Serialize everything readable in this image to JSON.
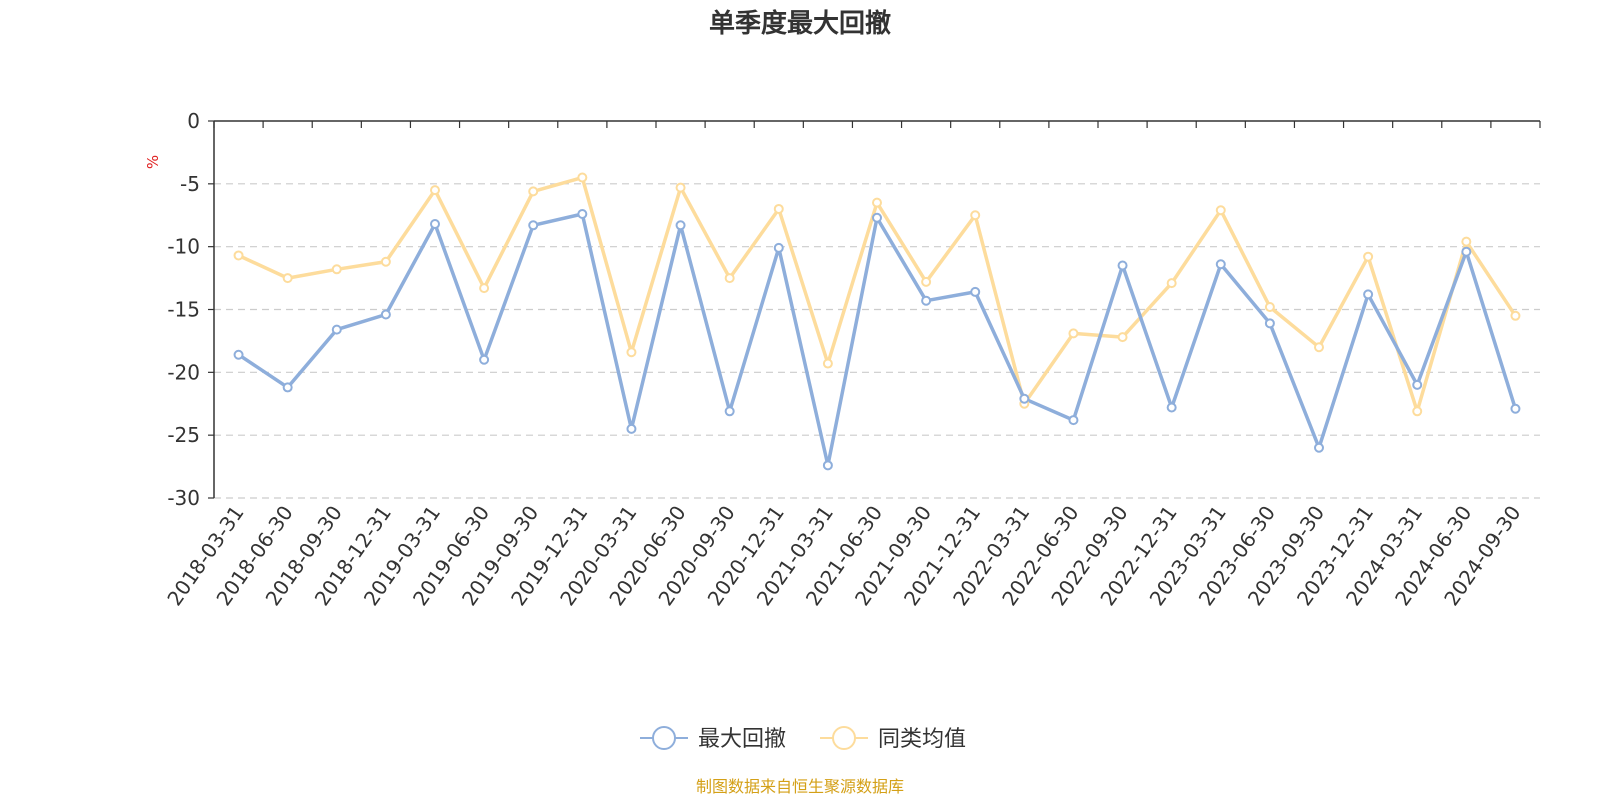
{
  "chart_data": {
    "type": "line",
    "title": "单季度最大回撤",
    "ylabel": "%",
    "ylim": [
      -30,
      0
    ],
    "yticks": [
      0,
      -5,
      -10,
      -15,
      -20,
      -25,
      -30
    ],
    "grid": true,
    "legend_position": "bottom-center",
    "categories": [
      "2018-03-31",
      "2018-06-30",
      "2018-09-30",
      "2018-12-31",
      "2019-03-31",
      "2019-06-30",
      "2019-09-30",
      "2019-12-31",
      "2020-03-31",
      "2020-06-30",
      "2020-09-30",
      "2020-12-31",
      "2021-03-31",
      "2021-06-30",
      "2021-09-30",
      "2021-12-31",
      "2022-03-31",
      "2022-06-30",
      "2022-09-30",
      "2022-12-31",
      "2023-03-31",
      "2023-06-30",
      "2023-09-30",
      "2023-12-31",
      "2024-03-31",
      "2024-06-30",
      "2024-09-30"
    ],
    "series": [
      {
        "name": "最大回撤",
        "color": "#8eaedb",
        "values": [
          -18.6,
          -21.2,
          -16.6,
          -15.4,
          -8.2,
          -19.0,
          -8.3,
          -7.4,
          -24.5,
          -8.3,
          -23.1,
          -10.1,
          -27.4,
          -7.7,
          -14.3,
          -13.6,
          -22.1,
          -23.8,
          -11.5,
          -22.8,
          -11.4,
          -16.1,
          -26.0,
          -13.8,
          -21.0,
          -10.4,
          -22.9
        ]
      },
      {
        "name": "同类均值",
        "color": "#fddc9c",
        "values": [
          -10.7,
          -12.5,
          -11.8,
          -11.2,
          -5.5,
          -13.3,
          -5.6,
          -4.5,
          -18.4,
          -5.3,
          -12.5,
          -7.0,
          -19.3,
          -6.5,
          -12.8,
          -7.5,
          -22.5,
          -16.9,
          -17.2,
          -12.9,
          -7.1,
          -14.8,
          -18.0,
          -10.8,
          -23.1,
          -9.6,
          -15.5
        ]
      }
    ]
  },
  "footer": {
    "source": "制图数据来自恒生聚源数据库",
    "source_color": "#d4a017"
  },
  "colors": {
    "grid": "#cccccc",
    "axis": "#333333",
    "unit": "#e02020"
  }
}
